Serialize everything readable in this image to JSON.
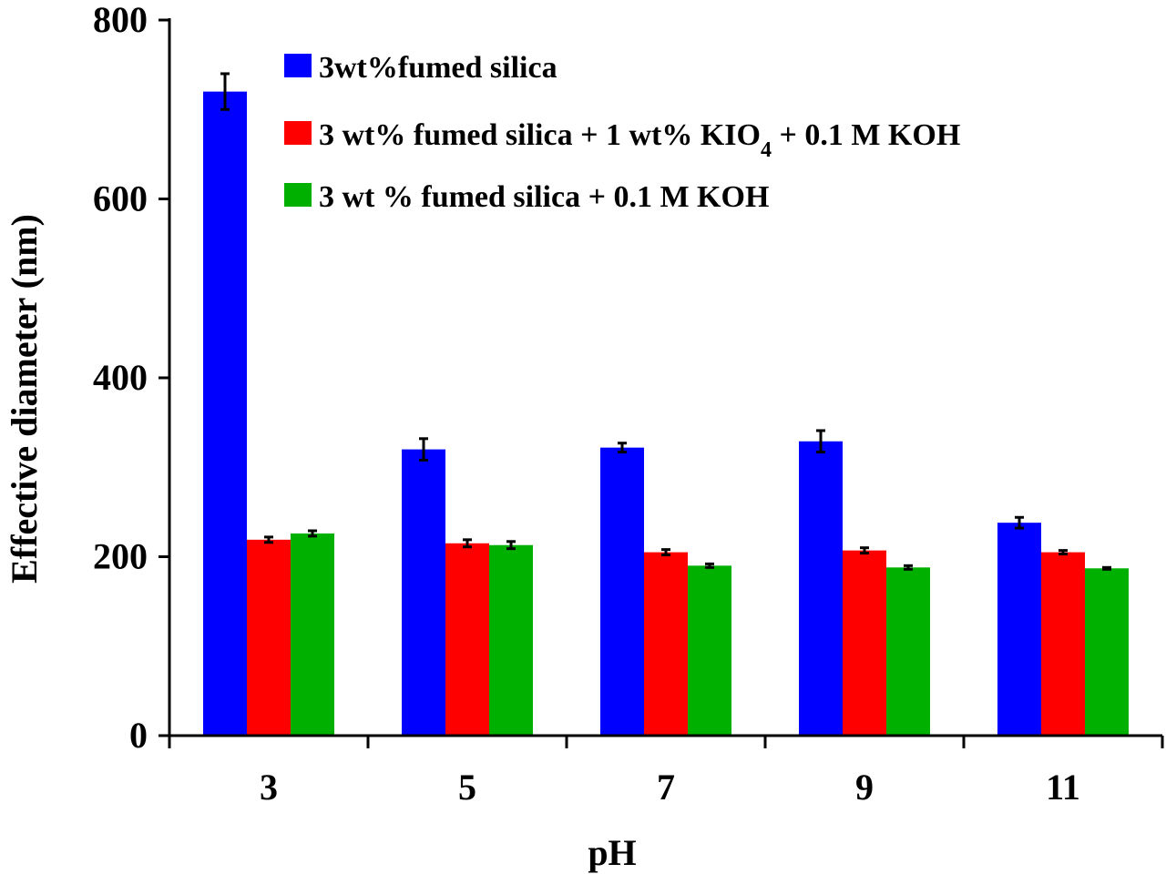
{
  "chart_data": {
    "type": "bar",
    "xlabel": "pH",
    "ylabel": "Effective diameter  (nm)",
    "categories": [
      "3",
      "5",
      "7",
      "9",
      "11"
    ],
    "ylim": [
      0,
      800
    ],
    "yticks": [
      0,
      200,
      400,
      600,
      800
    ],
    "grid": false,
    "legend_position": "top",
    "series": [
      {
        "name": "3wt%fumed silica",
        "legend_parts": [
          {
            "text": "3wt%fumed silica"
          }
        ],
        "color": "#0000ff",
        "values": [
          720,
          320,
          322,
          329,
          238
        ],
        "errors": [
          20,
          12,
          5,
          12,
          6
        ]
      },
      {
        "name": "3 wt% fumed silica + 1 wt% KIO4 + 0.1 M KOH",
        "legend_parts": [
          {
            "text": "3 wt% fumed silica + 1 wt% KIO"
          },
          {
            "text": "4",
            "sub": true
          },
          {
            "text": " + 0.1 M KOH"
          }
        ],
        "color": "#ff0000",
        "values": [
          219,
          215,
          205,
          207,
          205
        ],
        "errors": [
          3,
          4,
          3,
          3,
          2
        ]
      },
      {
        "name": "3 wt % fumed silica + 0.1 M KOH",
        "legend_parts": [
          {
            "text": "3 wt % fumed silica + 0.1 M KOH"
          }
        ],
        "color": "#00b000",
        "values": [
          226,
          213,
          190,
          188,
          187
        ],
        "errors": [
          3,
          4,
          2,
          2,
          1
        ]
      }
    ]
  }
}
